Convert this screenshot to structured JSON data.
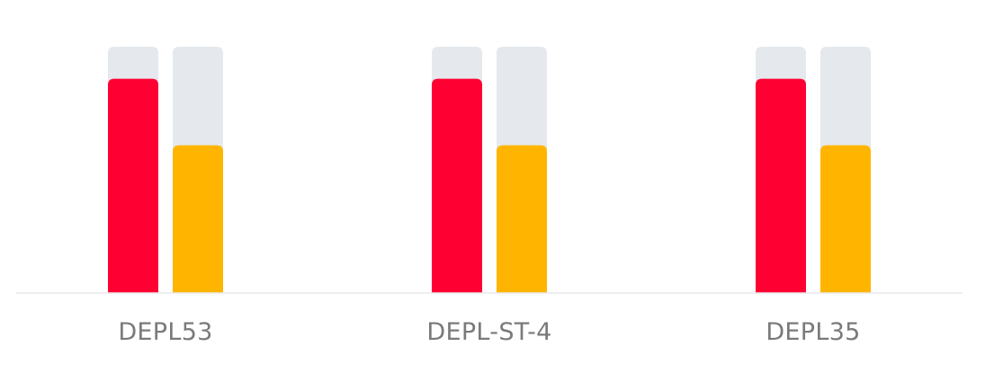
{
  "chart_data": {
    "type": "bar",
    "categories": [
      "DEPL53",
      "DEPL-ST-4",
      "DEPL35"
    ],
    "series": [
      {
        "values": [
          0.87,
          0.87,
          0.87
        ],
        "color": "#ff0033"
      },
      {
        "values": [
          0.6,
          0.6,
          0.6
        ],
        "color": "#ffb500"
      }
    ],
    "ylim": [
      0,
      1
    ],
    "track_color": "#e5e9ee",
    "baseline_color": "#e8eaed",
    "grid": false,
    "legend": "none",
    "title": "",
    "xlabel": "",
    "ylabel": ""
  }
}
